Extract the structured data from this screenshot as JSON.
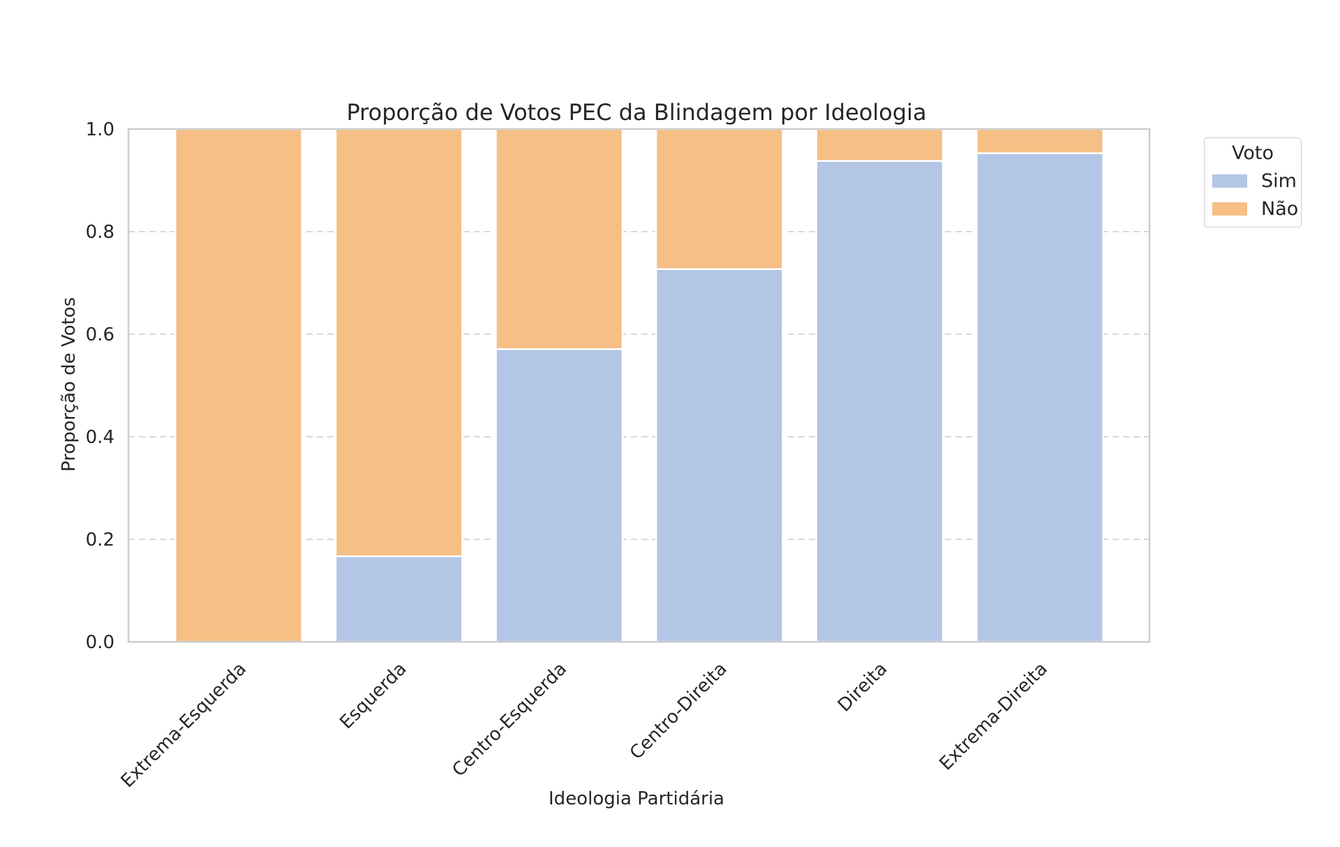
{
  "chart_data": {
    "type": "bar",
    "stacked": true,
    "title": "Proporção de Votos PEC da Blindagem por Ideologia",
    "xlabel": "Ideologia Partidária",
    "ylabel": "Proporção de Votos",
    "categories": [
      "Extrema-Esquerda",
      "Esquerda",
      "Centro-Esquerda",
      "Centro-Direita",
      "Direita",
      "Extrema-Direita"
    ],
    "series": [
      {
        "name": "Sim",
        "color": "#b3c6e6",
        "values": [
          0.0,
          0.167,
          0.571,
          0.727,
          0.938,
          0.953
        ]
      },
      {
        "name": "Não",
        "color": "#f5bf85",
        "values": [
          1.0,
          0.833,
          0.429,
          0.273,
          0.062,
          0.047
        ]
      }
    ],
    "ylim": [
      0,
      1.0
    ],
    "yticks": [
      "0.0",
      "0.2",
      "0.4",
      "0.6",
      "0.8",
      "1.0"
    ],
    "grid": {
      "y": true,
      "x": false,
      "style": "dashed"
    },
    "legend": {
      "title": "Voto",
      "placement": "outside-top-right"
    }
  }
}
